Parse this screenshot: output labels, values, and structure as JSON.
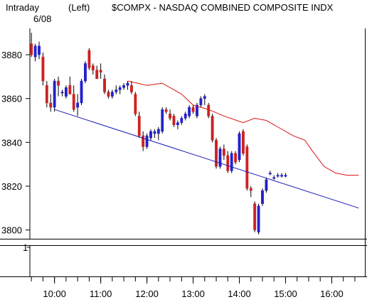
{
  "header": {
    "interval": "Intraday",
    "scale_side": "(Left)",
    "symbol_title": "$COMPX - NASDAQ COMBINED COMPOSITE INDX",
    "date": "6/08"
  },
  "colors": {
    "up": "#2222cc",
    "down": "#cc2222",
    "ma_line": "#dd1111",
    "trend_line": "#1a1ab4",
    "frame": "#000000"
  },
  "chart_data": {
    "type": "candlestick",
    "ylim": [
      3796,
      3892
    ],
    "yticks": [
      "3880",
      "3860",
      "3840",
      "3820",
      "3800"
    ],
    "ytick_values": [
      3880,
      3860,
      3840,
      3820,
      3800
    ],
    "xticks": [
      "10:00",
      "11:00",
      "12:00",
      "13:00",
      "14:00",
      "15:00",
      "16:00"
    ],
    "xtick_minutes": [
      600,
      660,
      720,
      780,
      840,
      900,
      960
    ],
    "xlim_minutes": [
      568,
      1003
    ],
    "bar_minutes": 5,
    "first_bar_minute": 570,
    "ohlc": [
      [
        3885,
        3890,
        3879,
        3880
      ],
      [
        3879,
        3885,
        3877,
        3884
      ],
      [
        3880,
        3886,
        3878,
        3884
      ],
      [
        3879,
        3881,
        3866,
        3868
      ],
      [
        3866,
        3868,
        3856,
        3858
      ],
      [
        3858,
        3862,
        3854,
        3856
      ],
      [
        3856,
        3869,
        3854,
        3868
      ],
      [
        3868,
        3870,
        3861,
        3866
      ],
      [
        3863,
        3864,
        3861,
        3863
      ],
      [
        3861,
        3866,
        3860,
        3865
      ],
      [
        3866,
        3870,
        3862,
        3862
      ],
      [
        3862,
        3866,
        3854,
        3855
      ],
      [
        3856,
        3862,
        3852,
        3858
      ],
      [
        3858,
        3869,
        3857,
        3868
      ],
      [
        3868,
        3877,
        3867,
        3876
      ],
      [
        3882,
        3883,
        3873,
        3874
      ],
      [
        3875,
        3876,
        3871,
        3873
      ],
      [
        3873,
        3875,
        3869,
        3869
      ],
      [
        3873,
        3876,
        3869,
        3872
      ],
      [
        3869,
        3871,
        3862,
        3863
      ],
      [
        3863,
        3864,
        3860,
        3861
      ],
      [
        3861,
        3864,
        3860,
        3863
      ],
      [
        3863,
        3866,
        3862,
        3864
      ],
      [
        3864,
        3866,
        3862,
        3865
      ],
      [
        3865,
        3867,
        3864,
        3866
      ],
      [
        3866,
        3868,
        3864,
        3867
      ],
      [
        3866,
        3868,
        3862,
        3863
      ],
      [
        3862,
        3863,
        3852,
        3853
      ],
      [
        3852,
        3854,
        3842,
        3843
      ],
      [
        3843,
        3845,
        3836,
        3838
      ],
      [
        3838,
        3844,
        3837,
        3843
      ],
      [
        3842,
        3846,
        3841,
        3845
      ],
      [
        3844,
        3846,
        3842,
        3845
      ],
      [
        3844,
        3847,
        3841,
        3846
      ],
      [
        3845,
        3856,
        3844,
        3855
      ],
      [
        3855,
        3856,
        3853,
        3854
      ],
      [
        3853,
        3855,
        3850,
        3851
      ],
      [
        3852,
        3853,
        3847,
        3848
      ],
      [
        3848,
        3850,
        3846,
        3849
      ],
      [
        3849,
        3852,
        3848,
        3851
      ],
      [
        3851,
        3854,
        3850,
        3853
      ],
      [
        3852,
        3857,
        3851,
        3856
      ],
      [
        3856,
        3857,
        3853,
        3854
      ],
      [
        3852,
        3858,
        3851,
        3857
      ],
      [
        3857,
        3861,
        3856,
        3860
      ],
      [
        3860,
        3862,
        3857,
        3861
      ],
      [
        3857,
        3858,
        3851,
        3852
      ],
      [
        3852,
        3853,
        3840,
        3841
      ],
      [
        3841,
        3842,
        3828,
        3829
      ],
      [
        3829,
        3838,
        3828,
        3837
      ],
      [
        3837,
        3839,
        3832,
        3834
      ],
      [
        3834,
        3836,
        3826,
        3827
      ],
      [
        3827,
        3836,
        3826,
        3835
      ],
      [
        3835,
        3836,
        3830,
        3831
      ],
      [
        3832,
        3845,
        3831,
        3844
      ],
      [
        3845,
        3846,
        3834,
        3835
      ],
      [
        3838,
        3839,
        3818,
        3819
      ],
      [
        3819,
        3820,
        3815,
        3818
      ],
      [
        3812,
        3813,
        3799,
        3800
      ],
      [
        3799,
        3812,
        3798,
        3811
      ],
      [
        3812,
        3819,
        3811,
        3818
      ],
      [
        3818,
        3824,
        3817,
        3823
      ],
      [
        3826,
        3827,
        3825,
        3826
      ],
      [
        3824,
        3825,
        3823,
        3824
      ],
      [
        3825,
        3826,
        3824,
        3825
      ],
      [
        3825,
        3826,
        3824,
        3825
      ],
      [
        3825,
        3826,
        3824,
        3825
      ]
    ],
    "moving_average": [
      [
        695,
        3868
      ],
      [
        720,
        3866
      ],
      [
        740,
        3867
      ],
      [
        765,
        3862
      ],
      [
        780,
        3857
      ],
      [
        800,
        3855
      ],
      [
        820,
        3852
      ],
      [
        845,
        3849
      ],
      [
        860,
        3851
      ],
      [
        875,
        3850
      ],
      [
        890,
        3847
      ],
      [
        910,
        3843
      ],
      [
        925,
        3841
      ],
      [
        935,
        3836
      ],
      [
        950,
        3829
      ],
      [
        965,
        3826
      ],
      [
        980,
        3825
      ],
      [
        995,
        3825
      ]
    ],
    "trendline": [
      [
        600,
        3855
      ],
      [
        995,
        3810
      ]
    ],
    "subpanel_ticks": [
      "1"
    ]
  }
}
